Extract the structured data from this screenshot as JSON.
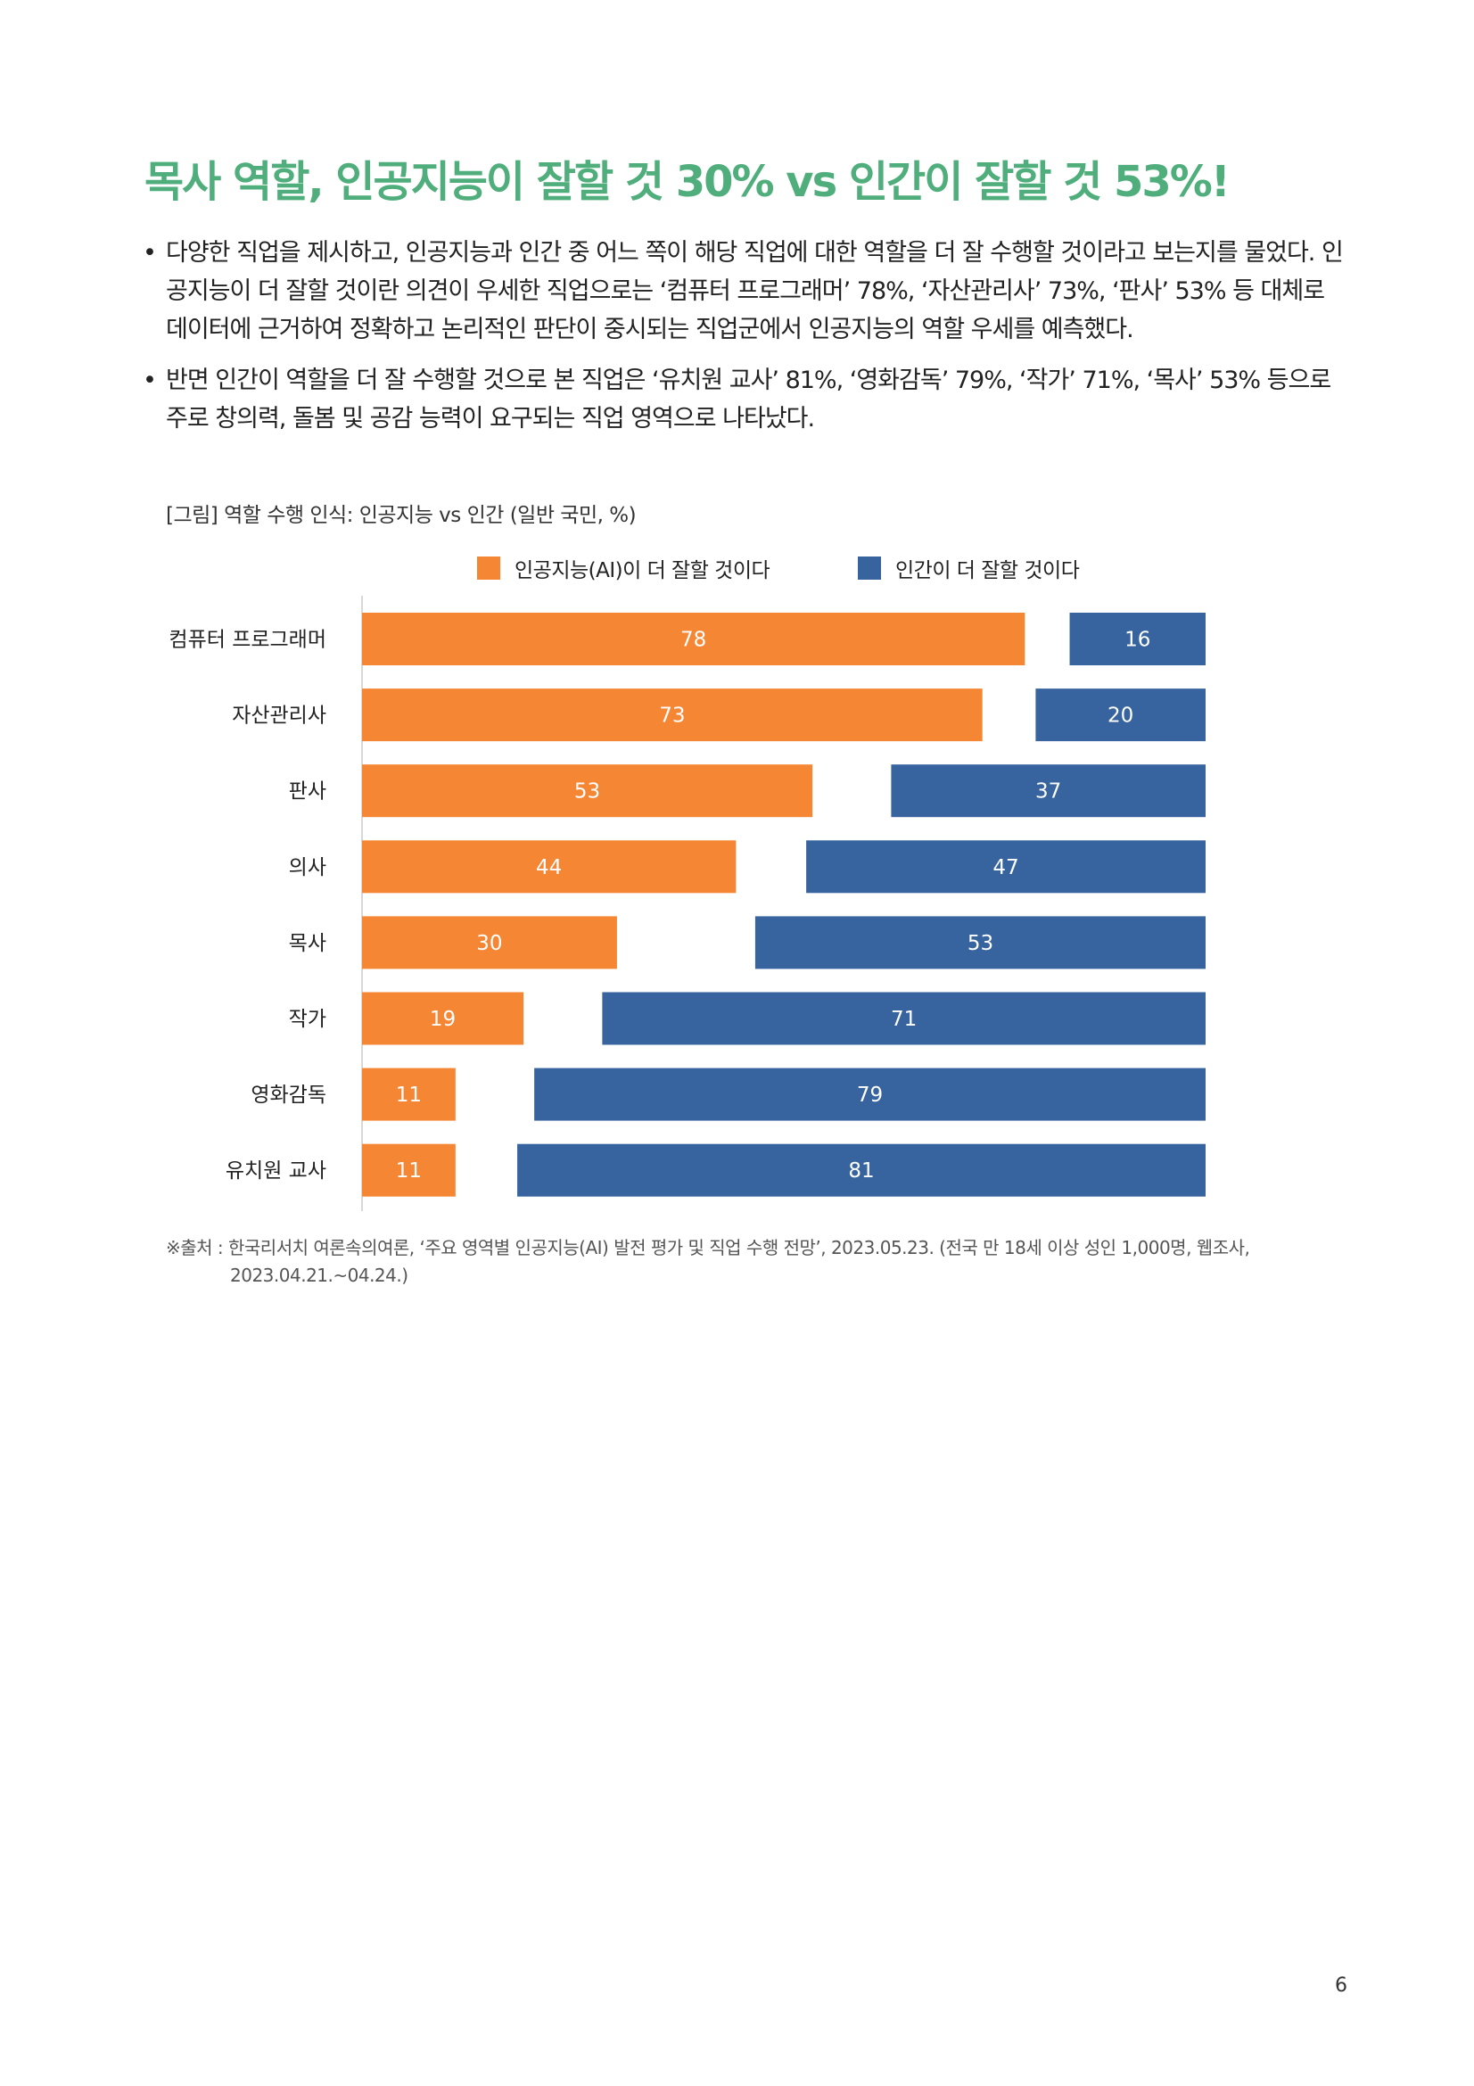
{
  "heading": "목사 역할, 인공지능이 잘할 것 30% vs 인간이 잘할 것 53%!",
  "bullets": [
    "다양한 직업을 제시하고, 인공지능과 인간 중 어느 쪽이 해당 직업에 대한 역할을 더 잘 수행할 것이라고 보는지를 물었다. 인공지능이 더 잘할 것이란 의견이 우세한 직업으로는 ‘컴퓨터 프로그래머’ 78%, ‘자산관리사’ 73%, ‘판사’ 53% 등 대체로 데이터에 근거하여 정확하고 논리적인 판단이 중시되는 직업군에서 인공지능의 역할 우세를 예측했다.",
    "반면 인간이 역할을 더 잘 수행할 것으로 본 직업은 ‘유치원 교사’ 81%, ‘영화감독’ 79%, ‘작가’ 71%, ‘목사’ 53% 등으로 주로 창의력, 돌봄 및 공감 능력이 요구되는 직업 영역으로 나타났다."
  ],
  "bullet_symbol": "•",
  "figure_caption": "[그림] 역할 수행 인식: 인공지능 vs 인간 (일반 국민, %)",
  "colors": {
    "ai": "#f58634",
    "human": "#37649f",
    "title": "#4fae7c"
  },
  "chart_data": {
    "type": "bar",
    "orientation": "horizontal",
    "layout": "split-diverging",
    "categories": [
      "컴퓨터 프로그래머",
      "자산관리사",
      "판사",
      "의사",
      "목사",
      "작가",
      "영화감독",
      "유치원 교사"
    ],
    "series": [
      {
        "name": "인공지능(AI)이 더 잘할 것이다",
        "values": [
          78,
          73,
          53,
          44,
          30,
          19,
          11,
          11
        ]
      },
      {
        "name": "인간이 더 잘할 것이다",
        "values": [
          16,
          20,
          37,
          47,
          53,
          71,
          79,
          81
        ]
      }
    ],
    "legend_position": "top-center",
    "data_labels": "inside bars",
    "grid": false
  },
  "source_note_line1": "※출처 : 한국리서치 여론속의여론, ‘주요 영역별 인공지능(AI) 발전 평가 및 직업 수행 전망’, 2023.05.23. (전국 만 18세 이상 성인 1,000명, 웹조사,",
  "source_note_line2": "2023.04.21.~04.24.)",
  "page_number": "6"
}
